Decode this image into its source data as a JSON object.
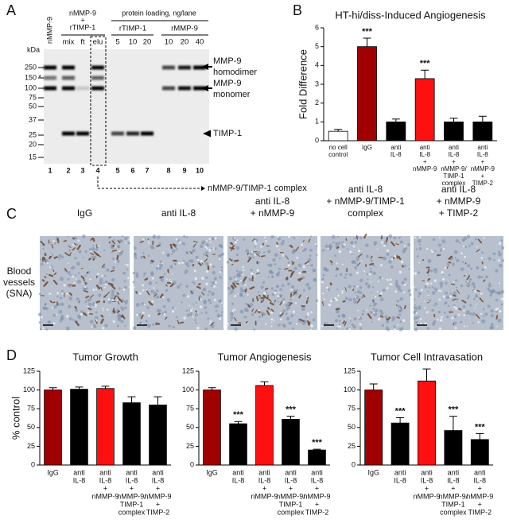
{
  "panels": [
    "A",
    "B",
    "C",
    "D"
  ],
  "gel": {
    "sample_label": "nMMP-9",
    "mix_group": [
      "nMMP-9",
      "+",
      "rTIMP-1"
    ],
    "loading_title": "protein loading, ng/lane",
    "groups": [
      "rTIMP-1",
      "rMMP-9"
    ],
    "lane_labels": [
      "mix",
      "ft",
      "elu",
      "5",
      "10",
      "20",
      "10",
      "20",
      "40"
    ],
    "kda_title": "kDa",
    "markers": [
      250,
      150,
      100,
      75,
      50,
      37,
      25,
      20,
      15
    ],
    "asterisk": "*",
    "lane_numbers": [
      1,
      2,
      3,
      4,
      5,
      6,
      7,
      8,
      9,
      10
    ],
    "band_labels": [
      [
        "MMP-9",
        "homodimer"
      ],
      [
        "MMP-9",
        "monomer"
      ],
      [
        "TIMP-1"
      ]
    ],
    "complex_label": "nMMP-9/TIMP-1 complex"
  },
  "images": {
    "headers": [
      [
        "IgG"
      ],
      [
        "anti IL-8"
      ],
      [
        "anti IL-8",
        "+ nMMP-9"
      ],
      [
        "anti IL-8",
        "+ nMMP-9/TIMP-1",
        "complex"
      ],
      [
        "anti IL-8",
        "+ nMMP-9",
        "+ TIMP-2"
      ]
    ],
    "row_label": [
      "Blood",
      "vessels",
      "(SNA)"
    ]
  },
  "chart_data": [
    {
      "type": "bar",
      "title": "HT-hi/diss-Induced Angiogenesis",
      "ylabel": "Fold Difference",
      "categories": [
        [
          "no cell",
          "control"
        ],
        [
          "IgG"
        ],
        [
          "anti",
          "IL-8"
        ],
        [
          "anti",
          "IL-8",
          "+",
          "nMMP-9"
        ],
        [
          "anti",
          "IL-8",
          "+",
          "nMMP-9/",
          "TIMP-1",
          "complex"
        ],
        [
          "anti",
          "IL-8",
          "+",
          "nMMP-9",
          "+",
          "TIMP-2"
        ]
      ],
      "values": [
        0.5,
        5.0,
        1.0,
        3.3,
        1.0,
        1.0
      ],
      "errors": [
        0.1,
        0.45,
        0.15,
        0.45,
        0.2,
        0.3
      ],
      "colors": [
        "#ffffff",
        "#a00000",
        "#000000",
        "#ff1010",
        "#000000",
        "#000000"
      ],
      "annotations": [
        null,
        "***",
        null,
        "***",
        null,
        null
      ],
      "ylim": [
        0,
        6
      ],
      "yticks": [
        0,
        1,
        2,
        3,
        4,
        5,
        6
      ]
    },
    {
      "type": "bar",
      "title": "Tumor Growth",
      "ylabel": "% control",
      "categories": [
        [
          "IgG"
        ],
        [
          "anti",
          "IL-8"
        ],
        [
          "anti",
          "IL-8",
          "+",
          "nMMP-9"
        ],
        [
          "anti",
          "IL-8",
          "+",
          "nMMP-9/",
          "TIMP-1",
          "complex"
        ],
        [
          "anti",
          "IL-8",
          "+",
          "nMMP-9",
          "+",
          "TIMP-2"
        ]
      ],
      "values": [
        100,
        101,
        102,
        83,
        80
      ],
      "errors": [
        3,
        3,
        3,
        8,
        11
      ],
      "colors": [
        "#a00000",
        "#000000",
        "#ff1010",
        "#000000",
        "#000000"
      ],
      "ylim": [
        0,
        125
      ],
      "yticks": [
        0,
        25,
        50,
        75,
        100,
        125
      ]
    },
    {
      "type": "bar",
      "title": "Tumor Angiogenesis",
      "categories": [
        [
          "IgG"
        ],
        [
          "anti",
          "IL-8"
        ],
        [
          "anti",
          "IL-8",
          "+",
          "nMMP-9"
        ],
        [
          "anti",
          "IL-8",
          "+",
          "nMMP-9/",
          "TIMP-1",
          "complex"
        ],
        [
          "anti",
          "IL-8",
          "+",
          "nMMP-9",
          "+",
          "TIMP-2"
        ]
      ],
      "values": [
        100,
        55,
        106,
        61,
        20
      ],
      "errors": [
        3,
        3,
        5,
        4,
        1
      ],
      "colors": [
        "#a00000",
        "#000000",
        "#ff1010",
        "#000000",
        "#000000"
      ],
      "annotations": [
        null,
        "***",
        null,
        "***",
        "***"
      ],
      "ylim": [
        0,
        125
      ],
      "yticks": [
        0,
        25,
        50,
        75,
        100,
        125
      ]
    },
    {
      "type": "bar",
      "title": "Tumor Cell Intravasation",
      "categories": [
        [
          "IgG"
        ],
        [
          "anti",
          "IL-8"
        ],
        [
          "anti",
          "IL-8",
          "+",
          "nMMP-9"
        ],
        [
          "anti",
          "IL-8",
          "+",
          "nMMP-9/",
          "TIMP-1",
          "complex"
        ],
        [
          "anti",
          "IL-8",
          "+",
          "nMMP-9",
          "+",
          "TIMP-2"
        ]
      ],
      "values": [
        100,
        56,
        112,
        46,
        34
      ],
      "errors": [
        8,
        7,
        16,
        19,
        8
      ],
      "colors": [
        "#a00000",
        "#000000",
        "#ff1010",
        "#000000",
        "#000000"
      ],
      "annotations": [
        null,
        "***",
        null,
        "***",
        "***"
      ],
      "ylim": [
        0,
        125
      ],
      "yticks": [
        0,
        25,
        50,
        75,
        100,
        125
      ]
    }
  ]
}
